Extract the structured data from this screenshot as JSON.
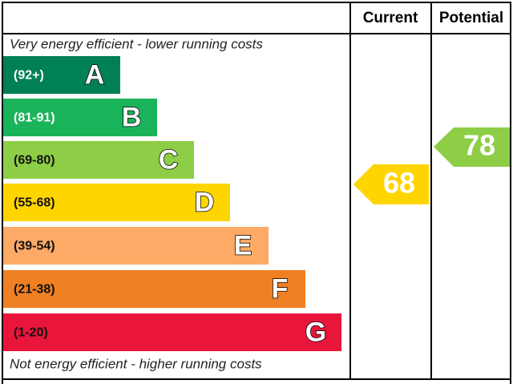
{
  "header": {
    "current": "Current",
    "potential": "Potential"
  },
  "top_note": "Very energy efficient - lower running costs",
  "bottom_note": "Not energy efficient - higher running costs",
  "bands": [
    {
      "range": "(92+)",
      "letter": "A"
    },
    {
      "range": "(81-91)",
      "letter": "B"
    },
    {
      "range": "(69-80)",
      "letter": "C"
    },
    {
      "range": "(55-68)",
      "letter": "D"
    },
    {
      "range": "(39-54)",
      "letter": "E"
    },
    {
      "range": "(21-38)",
      "letter": "F"
    },
    {
      "range": "(1-20)",
      "letter": "G"
    }
  ],
  "current": "68",
  "potential": "78"
}
